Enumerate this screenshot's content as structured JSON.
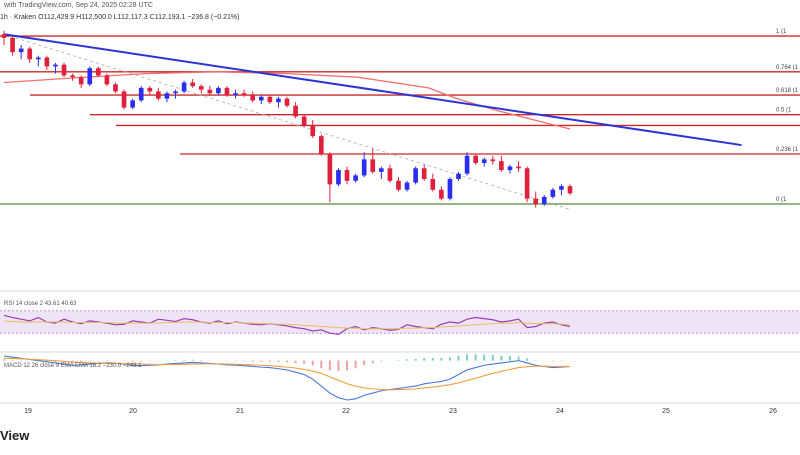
{
  "header": {
    "source": "with TradingView.com, Sep 24, 2025 02:28 UTC",
    "symbol_line": "1h · Kraken  O112,429.9 H112,500.0 L112,117.3 C112,193.1 −236.8 (−0.21%)"
  },
  "watermark": "View",
  "colors": {
    "up": "#2a2ef0",
    "down": "#e0203c",
    "trendline": "#2b35d6",
    "ma": "#f07070",
    "fib_line": "#cc2a2a",
    "rsi": "#9b3fb3",
    "rsi_band": "#efe3f8",
    "macd_line": "#4a78d8",
    "signal_line": "#f0a040",
    "support": "#5a8a3c"
  },
  "chart_data": {
    "type": "candlestick",
    "x_ticks": [
      "19",
      "20",
      "21",
      "22",
      "23",
      "24",
      "25",
      "26"
    ],
    "y_range": [
      110500,
      118000
    ],
    "fib_levels": [
      {
        "label": "1 (1",
        "value": 117550
      },
      {
        "label": "0.764 (1",
        "value": 116550
      },
      {
        "label": "0.618 (1",
        "value": 115900
      },
      {
        "label": "0.5 (1",
        "value": 115350
      },
      {
        "label": "0.236 (1",
        "value": 114250
      },
      {
        "label": "0 (1",
        "value": 112850
      }
    ],
    "horizontal_line": 115050,
    "trendline": [
      [
        0,
        117600
      ],
      [
        86,
        114500
      ]
    ],
    "candles": [
      [
        117600,
        117700,
        117300,
        117500
      ],
      [
        117500,
        117550,
        117000,
        117100
      ],
      [
        117100,
        117300,
        116900,
        117200
      ],
      [
        117200,
        117250,
        116800,
        116900
      ],
      [
        116900,
        117000,
        116700,
        116950
      ],
      [
        116950,
        117000,
        116600,
        116700
      ],
      [
        116700,
        116800,
        116500,
        116750
      ],
      [
        116750,
        116800,
        116400,
        116450
      ],
      [
        116450,
        116500,
        116300,
        116400
      ],
      [
        116400,
        116450,
        116100,
        116200
      ],
      [
        116200,
        116700,
        116150,
        116650
      ],
      [
        116650,
        116700,
        116400,
        116450
      ],
      [
        116450,
        116500,
        116150,
        116200
      ],
      [
        116200,
        116250,
        115950,
        116000
      ],
      [
        116000,
        116050,
        115500,
        115550
      ],
      [
        115550,
        115800,
        115500,
        115750
      ],
      [
        115750,
        116150,
        115700,
        116100
      ],
      [
        116100,
        116150,
        115900,
        116000
      ],
      [
        116000,
        116100,
        115750,
        115800
      ],
      [
        115800,
        116000,
        115700,
        115950
      ],
      [
        115950,
        116050,
        115800,
        116000
      ],
      [
        116000,
        116300,
        115950,
        116250
      ],
      [
        116250,
        116350,
        116100,
        116150
      ],
      [
        116150,
        116200,
        115950,
        116050
      ],
      [
        116050,
        116150,
        115900,
        115950
      ],
      [
        115950,
        116150,
        115900,
        116100
      ],
      [
        116100,
        116150,
        115850,
        115900
      ],
      [
        115900,
        116050,
        115800,
        115950
      ],
      [
        115950,
        116050,
        115850,
        115900
      ],
      [
        115900,
        116000,
        115700,
        115750
      ],
      [
        115750,
        115900,
        115650,
        115850
      ],
      [
        115850,
        115900,
        115650,
        115700
      ],
      [
        115700,
        115850,
        115550,
        115800
      ],
      [
        115800,
        115850,
        115550,
        115600
      ],
      [
        115600,
        115700,
        115250,
        115300
      ],
      [
        115300,
        115350,
        115000,
        115050
      ],
      [
        115050,
        115200,
        114700,
        114750
      ],
      [
        114750,
        114800,
        114200,
        114250
      ],
      [
        114250,
        114300,
        112900,
        113400
      ],
      [
        113400,
        113850,
        113350,
        113800
      ],
      [
        113800,
        113900,
        113400,
        113500
      ],
      [
        113500,
        113700,
        113450,
        113650
      ],
      [
        113650,
        114300,
        113600,
        114100
      ],
      [
        114100,
        114400,
        113700,
        113750
      ],
      [
        113750,
        113900,
        113550,
        113850
      ],
      [
        113850,
        113950,
        113450,
        113500
      ],
      [
        113500,
        113600,
        113200,
        113250
      ],
      [
        113250,
        113500,
        113200,
        113450
      ],
      [
        113450,
        113900,
        113400,
        113850
      ],
      [
        113850,
        113950,
        113500,
        113550
      ],
      [
        113550,
        113700,
        113200,
        113250
      ],
      [
        113250,
        113350,
        112950,
        113000
      ],
      [
        113000,
        113600,
        112950,
        113550
      ],
      [
        113550,
        113750,
        113500,
        113700
      ],
      [
        113700,
        114300,
        113650,
        114200
      ],
      [
        114200,
        114250,
        113950,
        114000
      ],
      [
        114000,
        114150,
        113900,
        114100
      ],
      [
        114100,
        114200,
        113950,
        114050
      ],
      [
        114050,
        114200,
        113750,
        113800
      ],
      [
        113800,
        113950,
        113700,
        113900
      ],
      [
        113900,
        114050,
        113750,
        113850
      ],
      [
        113850,
        113900,
        112900,
        113000
      ],
      [
        113000,
        113200,
        112750,
        112850
      ],
      [
        112850,
        113100,
        112800,
        113050
      ],
      [
        113050,
        113300,
        113000,
        113250
      ],
      [
        113250,
        113400,
        113100,
        113350
      ],
      [
        113350,
        113400,
        113100,
        113150
      ]
    ],
    "ma": [
      [
        0,
        116250
      ],
      [
        10,
        116380
      ],
      [
        20,
        116500
      ],
      [
        30,
        116550
      ],
      [
        40,
        116500
      ],
      [
        50,
        116400
      ],
      [
        60,
        116100
      ],
      [
        64,
        115800
      ],
      [
        70,
        115450
      ],
      [
        76,
        115150
      ],
      [
        80,
        114950
      ]
    ],
    "rsi": {
      "header": "RSI 14 close 2  43.61  40.63",
      "values": [
        62,
        58,
        55,
        52,
        58,
        50,
        48,
        55,
        50,
        47,
        52,
        50,
        48,
        45,
        46,
        52,
        50,
        48,
        55,
        53,
        51,
        56,
        54,
        50,
        48,
        52,
        47,
        50,
        48,
        46,
        45,
        47,
        45,
        43,
        40,
        38,
        34,
        36,
        30,
        28,
        38,
        42,
        36,
        40,
        38,
        35,
        37,
        45,
        42,
        40,
        38,
        46,
        50,
        48,
        55,
        58,
        56,
        54,
        50,
        52,
        55,
        40,
        42,
        48,
        50,
        45,
        42
      ],
      "ma": [
        52,
        51,
        50,
        50,
        50,
        50,
        50,
        50,
        49,
        49,
        49,
        49,
        49,
        48,
        48,
        48,
        48,
        48,
        48,
        49,
        49,
        50,
        50,
        50,
        49,
        49,
        49,
        49,
        48,
        48,
        47,
        47,
        46,
        46,
        45,
        44,
        43,
        42,
        41,
        40,
        39,
        39,
        38,
        38,
        38,
        38,
        38,
        39,
        39,
        40,
        40,
        41,
        42,
        43,
        44,
        45,
        46,
        47,
        48,
        48,
        49,
        48,
        47,
        47,
        47,
        46,
        46
      ]
    },
    "macd": {
      "header": "MACD 12 26 close 9  EMA  EMA  18.2  −230.0  −248.1",
      "macd": [
        20,
        15,
        10,
        5,
        0,
        -5,
        -10,
        -15,
        -20,
        -18,
        -15,
        -12,
        -10,
        -12,
        -15,
        -20,
        -22,
        -20,
        -18,
        -15,
        -12,
        -10,
        -8,
        -10,
        -12,
        -15,
        -18,
        -20,
        -22,
        -25,
        -28,
        -30,
        -35,
        -40,
        -50,
        -60,
        -80,
        -110,
        -140,
        -160,
        -170,
        -165,
        -150,
        -140,
        -130,
        -125,
        -120,
        -115,
        -110,
        -100,
        -95,
        -90,
        -80,
        -60,
        -40,
        -30,
        -20,
        -15,
        -10,
        -5,
        0,
        -10,
        -20,
        -25,
        -30,
        -28,
        -25
      ],
      "signal": [
        10,
        9,
        8,
        6,
        4,
        2,
        0,
        -3,
        -6,
        -8,
        -10,
        -11,
        -12,
        -12,
        -13,
        -14,
        -15,
        -16,
        -17,
        -17,
        -17,
        -16,
        -15,
        -14,
        -14,
        -14,
        -15,
        -16,
        -17,
        -18,
        -20,
        -22,
        -25,
        -28,
        -32,
        -38,
        -45,
        -55,
        -70,
        -85,
        -100,
        -110,
        -118,
        -122,
        -125,
        -126,
        -125,
        -124,
        -122,
        -118,
        -114,
        -110,
        -104,
        -96,
        -86,
        -76,
        -65,
        -55,
        -46,
        -38,
        -30,
        -26,
        -24,
        -24,
        -25,
        -25,
        -25
      ]
    }
  }
}
